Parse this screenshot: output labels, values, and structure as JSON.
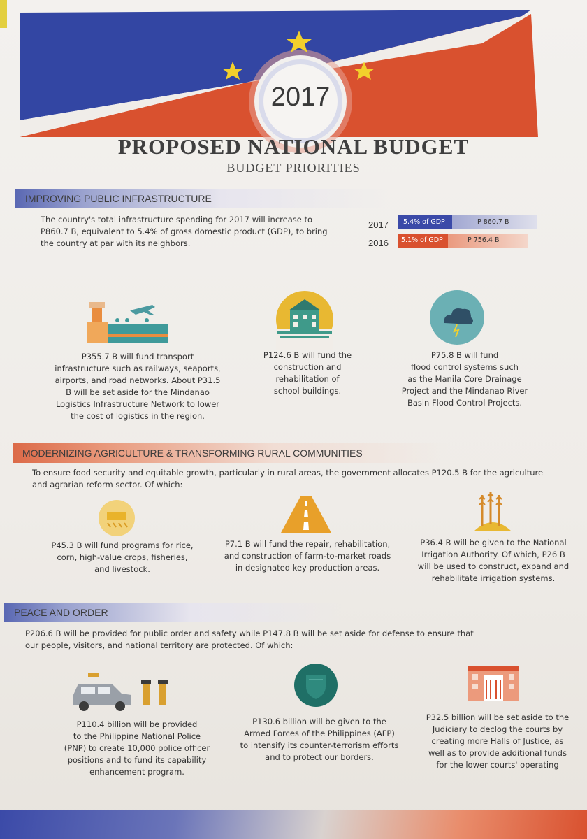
{
  "header": {
    "year": "2017",
    "title": "PROPOSED NATIONAL BUDGET",
    "subtitle": "BUDGET PRIORITIES"
  },
  "infrastructure": {
    "heading": "IMPROVING PUBLIC INFRASTRUCTURE",
    "intro_lines": [
      "The country's total infrastructure spending for 2017 will increase to",
      "P860.7 B, equivalent to 5.4% of  gross domestic product (GDP), to bring",
      "the country at par with its neighbors."
    ],
    "gdp": [
      {
        "year": "2017",
        "pct_label": "5.4% of GDP",
        "amount": "P 860.7 B"
      },
      {
        "year": "2016",
        "pct_label": "5.1% of GDP",
        "amount": "P 756.4 B"
      }
    ],
    "items": [
      {
        "icon": "transport-icon",
        "lines": [
          "P355.7 B will fund  transport",
          "infrastructure such as railways, seaports,",
          "airports, and road networks. About P31.5",
          "B will be set aside for the Mindanao",
          "Logistics Infrastructure Network to lower",
          "the cost of logistics in the region."
        ]
      },
      {
        "icon": "school-building-icon",
        "lines": [
          "P124.6 B will fund the",
          "construction and",
          "rehabilitation of",
          "school buildings."
        ]
      },
      {
        "icon": "flood-cloud-icon",
        "lines": [
          "P75.8 B will fund",
          "flood control systems such",
          "as the Manila Core Drainage",
          "Project and the Mindanao River",
          "Basin Flood Control Projects."
        ]
      }
    ]
  },
  "agriculture": {
    "heading": "MODERNIZING  AGRICULTURE & TRANSFORMING RURAL COMMUNITIES",
    "intro_lines": [
      "To ensure food security and equitable growth, particularly in rural areas, the government allocates P120.5 B for the agriculture",
      "and agrarian reform sector. Of which:"
    ],
    "items": [
      {
        "icon": "crops-icon",
        "lines": [
          "P45.3 B will fund programs for rice,",
          "corn, high-value crops, fisheries,",
          "and livestock."
        ]
      },
      {
        "icon": "road-icon",
        "lines": [
          "P7.1 B will fund the repair, rehabilitation,",
          "and construction of farm-to-market roads",
          "in designated key production areas."
        ]
      },
      {
        "icon": "irrigation-icon",
        "lines": [
          "P36.4 B will be given to the National",
          "Irrigation Authority. Of which,  P26 B",
          "will be used to construct, expand and",
          "rehabilitate irrigation systems."
        ]
      }
    ]
  },
  "peace": {
    "heading": "PEACE AND ORDER",
    "intro_lines": [
      "P206.6 B will be provided for public order and safety while P147.8 B will be set aside for defense to ensure that",
      "our people, visitors, and national territory are protected.  Of which:"
    ],
    "items": [
      {
        "icon": "police-icon",
        "lines": [
          "P110.4 billion will be provided",
          "to the Philippine National Police",
          "(PNP) to create 10,000 police officer",
          "positions and to fund its capability",
          "enhancement program."
        ]
      },
      {
        "icon": "shield-icon",
        "lines": [
          "P130.6 billion will be given to the",
          "Armed Forces of the Philippines (AFP)",
          "to intensify its counter-terrorism efforts",
          "and to protect our borders."
        ]
      },
      {
        "icon": "hall-of-justice-icon",
        "lines": [
          "P32.5 billion will be set aside to the",
          "Judiciary to declog the courts by",
          "creating more Halls of Justice, as",
          "well as to provide additional funds",
          "for the lower courts' operating"
        ]
      }
    ]
  },
  "colors": {
    "blue": "#3b4aa8",
    "red": "#d9512f",
    "gold": "#e8b832",
    "teal": "#4c9aa2"
  }
}
